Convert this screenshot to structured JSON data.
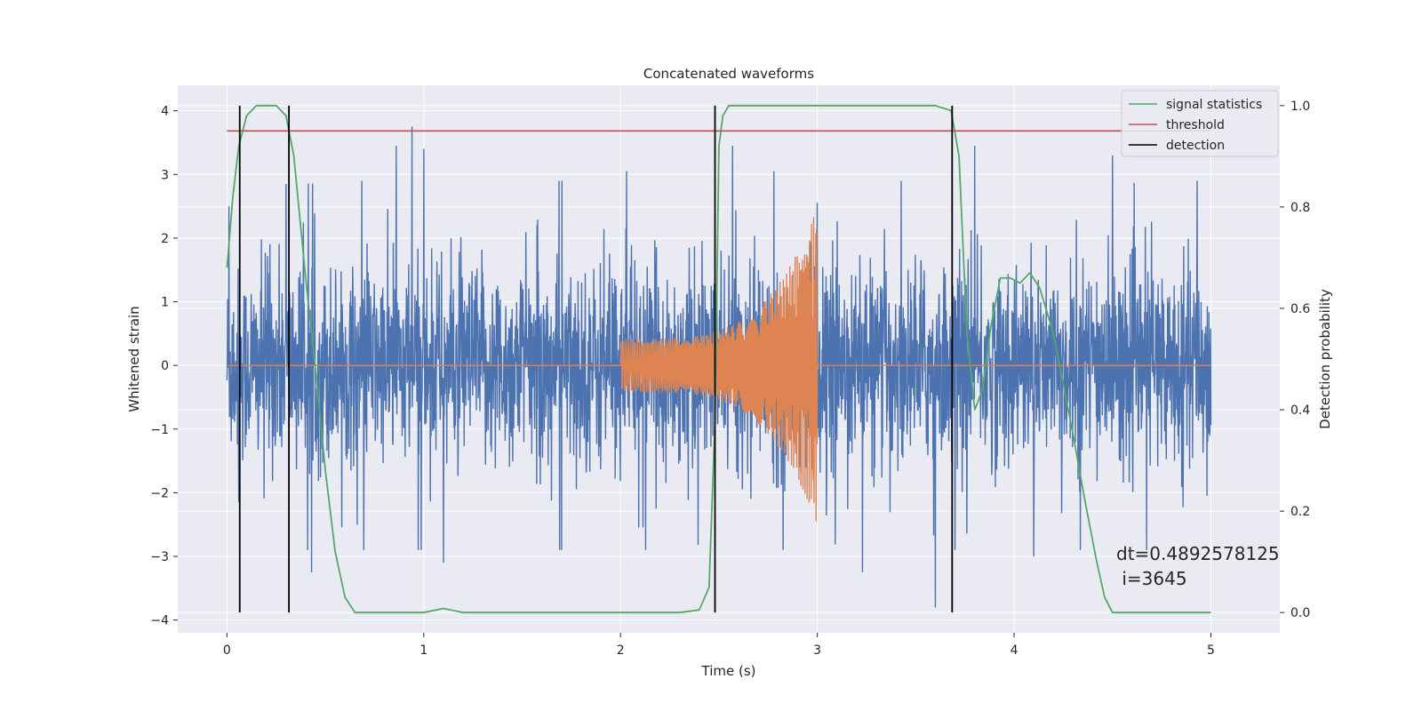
{
  "chart_data": {
    "type": "line",
    "title": "Concatenated waveforms",
    "xlabel": "Time (s)",
    "ylabel_left": "Whitened strain",
    "ylabel_right": "Detection probability",
    "xlim": [
      -0.25,
      5.35
    ],
    "ylim_left": [
      -4.2,
      4.4
    ],
    "ylim_right": [
      -0.04,
      1.04
    ],
    "xticks": [
      0,
      1,
      2,
      3,
      4,
      5
    ],
    "xtick_labels": [
      "0",
      "1",
      "2",
      "3",
      "4",
      "5"
    ],
    "yticks_left": [
      -4,
      -3,
      -2,
      -1,
      0,
      1,
      2,
      3,
      4
    ],
    "ytick_labels_left": [
      "−4",
      "−3",
      "−2",
      "−1",
      "0",
      "1",
      "2",
      "3",
      "4"
    ],
    "yticks_right": [
      0.0,
      0.2,
      0.4,
      0.6,
      0.8,
      1.0
    ],
    "ytick_labels_right": [
      "0.0",
      "0.2",
      "0.4",
      "0.6",
      "0.8",
      "1.0"
    ],
    "grid": true,
    "legend_position": "top-right",
    "series": [
      {
        "name": "",
        "kind": "strain_noise",
        "axis": "left",
        "color": "#4c72b0",
        "x_range": [
          0,
          5
        ],
        "typical_amplitude": 1.0,
        "peak_values": [
          {
            "x": 0.01,
            "y": 2.5
          },
          {
            "x": 0.06,
            "y": -2.15
          },
          {
            "x": 0.3,
            "y": 2.85
          },
          {
            "x": 0.43,
            "y": -3.25
          },
          {
            "x": 0.86,
            "y": 3.45
          },
          {
            "x": 0.94,
            "y": 3.75
          },
          {
            "x": 1.0,
            "y": 3.4
          },
          {
            "x": 1.1,
            "y": -3.1
          },
          {
            "x": 1.7,
            "y": -2.9
          },
          {
            "x": 2.03,
            "y": 3.05
          },
          {
            "x": 2.57,
            "y": 3.45
          },
          {
            "x": 2.78,
            "y": 3.05
          },
          {
            "x": 3.23,
            "y": -3.25
          },
          {
            "x": 3.6,
            "y": -3.8
          },
          {
            "x": 3.8,
            "y": 3.45
          },
          {
            "x": 4.1,
            "y": -3.0
          },
          {
            "x": 4.5,
            "y": 3.3
          },
          {
            "x": 4.93,
            "y": 2.9
          },
          {
            "x": 4.98,
            "y": -2.05
          }
        ]
      },
      {
        "name": "",
        "kind": "chirp",
        "axis": "left",
        "color": "#dd8452",
        "x_range": [
          0,
          5
        ],
        "chirp_start": 2.0,
        "chirp_end": 3.0,
        "amplitude_start": 0.42,
        "amplitude_end": 2.5
      },
      {
        "name": "signal statistics",
        "axis": "right",
        "color": "#55a868",
        "x": [
          0.0,
          0.03,
          0.06,
          0.1,
          0.15,
          0.25,
          0.3,
          0.34,
          0.4,
          0.45,
          0.5,
          0.55,
          0.6,
          0.65,
          0.8,
          1.0,
          1.1,
          1.2,
          1.5,
          2.0,
          2.3,
          2.4,
          2.45,
          2.48,
          2.5,
          2.52,
          2.55,
          2.6,
          3.0,
          3.5,
          3.6,
          3.68,
          3.72,
          3.76,
          3.8,
          3.84,
          3.88,
          3.93,
          3.98,
          4.03,
          4.08,
          4.13,
          4.2,
          4.3,
          4.36,
          4.42,
          4.46,
          4.5,
          4.6,
          5.0
        ],
        "y": [
          0.68,
          0.82,
          0.92,
          0.98,
          1.0,
          1.0,
          0.98,
          0.9,
          0.66,
          0.48,
          0.28,
          0.12,
          0.03,
          0.0,
          0.0,
          0.0,
          0.008,
          0.0,
          0.0,
          0.0,
          0.0,
          0.005,
          0.05,
          0.38,
          0.92,
          0.98,
          1.0,
          1.0,
          1.0,
          1.0,
          1.0,
          0.99,
          0.9,
          0.55,
          0.4,
          0.44,
          0.56,
          0.66,
          0.66,
          0.65,
          0.67,
          0.64,
          0.55,
          0.35,
          0.22,
          0.1,
          0.03,
          0.0,
          0.0,
          0.0
        ]
      },
      {
        "name": "threshold",
        "axis": "right",
        "color": "#c44e52",
        "x": [
          0,
          5
        ],
        "y": [
          0.95,
          0.95
        ]
      },
      {
        "name": "detection",
        "axis": "right",
        "color": "#000000",
        "vertical_lines_x": [
          0.065,
          0.315,
          2.48,
          3.685
        ],
        "y_span": [
          0.0,
          1.0
        ]
      }
    ],
    "annotations": [
      {
        "text": "dt=0.4892578125",
        "x": 4.5,
        "y_left": -3.0
      },
      {
        "text": " i=3645",
        "x": 4.5,
        "y_left": -3.4
      }
    ]
  }
}
